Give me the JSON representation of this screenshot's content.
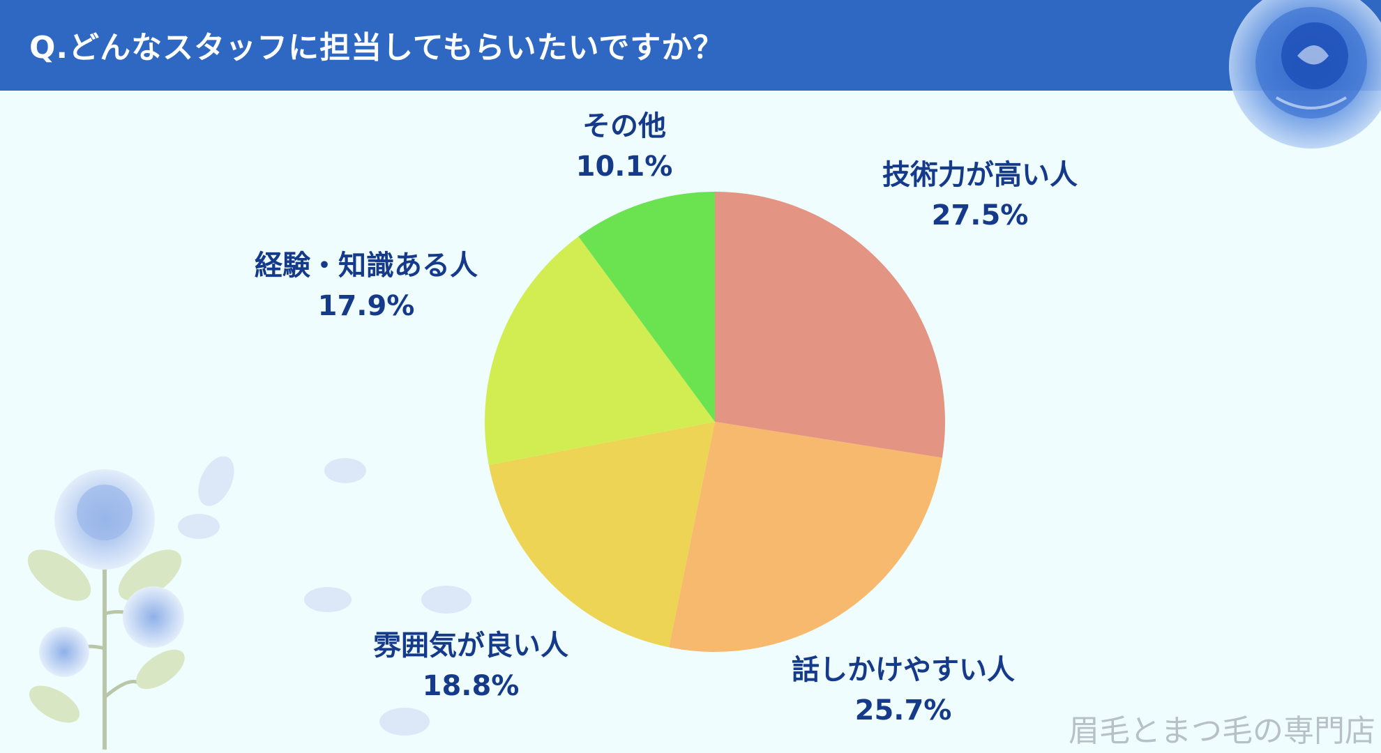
{
  "header": {
    "title": "Q.どんなスタッフに担当してもらいたいですか？"
  },
  "footer": {
    "watermark": "眉毛とまつ毛の専門店"
  },
  "colors": {
    "header_bg": "#2e68c2",
    "label_text": "#163a8a",
    "background": "#effdfe"
  },
  "chart_data": {
    "type": "pie",
    "start": "12 o'clock, clockwise",
    "slices": [
      {
        "label": "技術力が高い人",
        "value": 27.5,
        "value_label": "27.5%",
        "color": "#e49482"
      },
      {
        "label": "話しかけやすい人",
        "value": 25.7,
        "value_label": "25.7%",
        "color": "#f6b96d"
      },
      {
        "label": "雰囲気が良い人",
        "value": 18.8,
        "value_label": "18.8%",
        "color": "#eed454"
      },
      {
        "label": "経験・知識ある人",
        "value": 17.9,
        "value_label": "17.9%",
        "color": "#d2ed52"
      },
      {
        "label": "その他",
        "value": 10.1,
        "value_label": "10.1%",
        "color": "#6be351"
      }
    ]
  }
}
